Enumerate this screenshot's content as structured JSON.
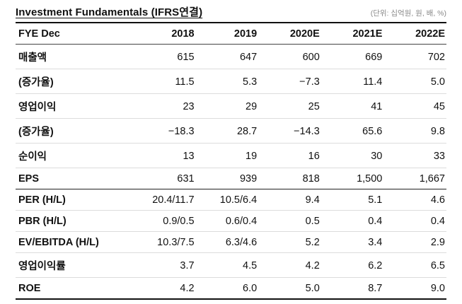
{
  "header": {
    "title": "Investment Fundamentals (IFRS연결)",
    "unit_note": "(단위: 십억원, 원, 배, %)"
  },
  "table": {
    "columns": [
      "FYE Dec",
      "2018",
      "2019",
      "2020E",
      "2021E",
      "2022E"
    ],
    "rows": [
      {
        "label": "매출액",
        "values": [
          "615",
          "647",
          "600",
          "669",
          "702"
        ]
      },
      {
        "label": "(증가율)",
        "values": [
          "11.5",
          "5.3",
          "−7.3",
          "11.4",
          "5.0"
        ]
      },
      {
        "label": "영업이익",
        "values": [
          "23",
          "29",
          "25",
          "41",
          "45"
        ]
      },
      {
        "label": "(증가율)",
        "values": [
          "−18.3",
          "28.7",
          "−14.3",
          "65.6",
          "9.8"
        ]
      },
      {
        "label": "순이익",
        "values": [
          "13",
          "19",
          "16",
          "30",
          "33"
        ]
      },
      {
        "label": "EPS",
        "values": [
          "631",
          "939",
          "818",
          "1,500",
          "1,667"
        ]
      },
      {
        "label": "PER (H/L)",
        "values": [
          "20.4/11.7",
          "10.5/6.4",
          "9.4",
          "5.1",
          "4.6"
        ]
      },
      {
        "label": "PBR (H/L)",
        "values": [
          "0.9/0.5",
          "0.6/0.4",
          "0.5",
          "0.4",
          "0.4"
        ]
      },
      {
        "label": "EV/EBITDA (H/L)",
        "values": [
          "10.3/7.5",
          "6.3/4.6",
          "5.2",
          "3.4",
          "2.9"
        ]
      },
      {
        "label": "영업이익률",
        "values": [
          "3.7",
          "4.5",
          "4.2",
          "6.2",
          "6.5"
        ]
      },
      {
        "label": "ROE",
        "values": [
          "4.2",
          "6.0",
          "5.0",
          "8.7",
          "9.0"
        ]
      }
    ]
  },
  "colors": {
    "text": "#111111",
    "unit_note": "#888888",
    "rule_strong": "#111111",
    "rule_light": "#dcdcdc"
  }
}
